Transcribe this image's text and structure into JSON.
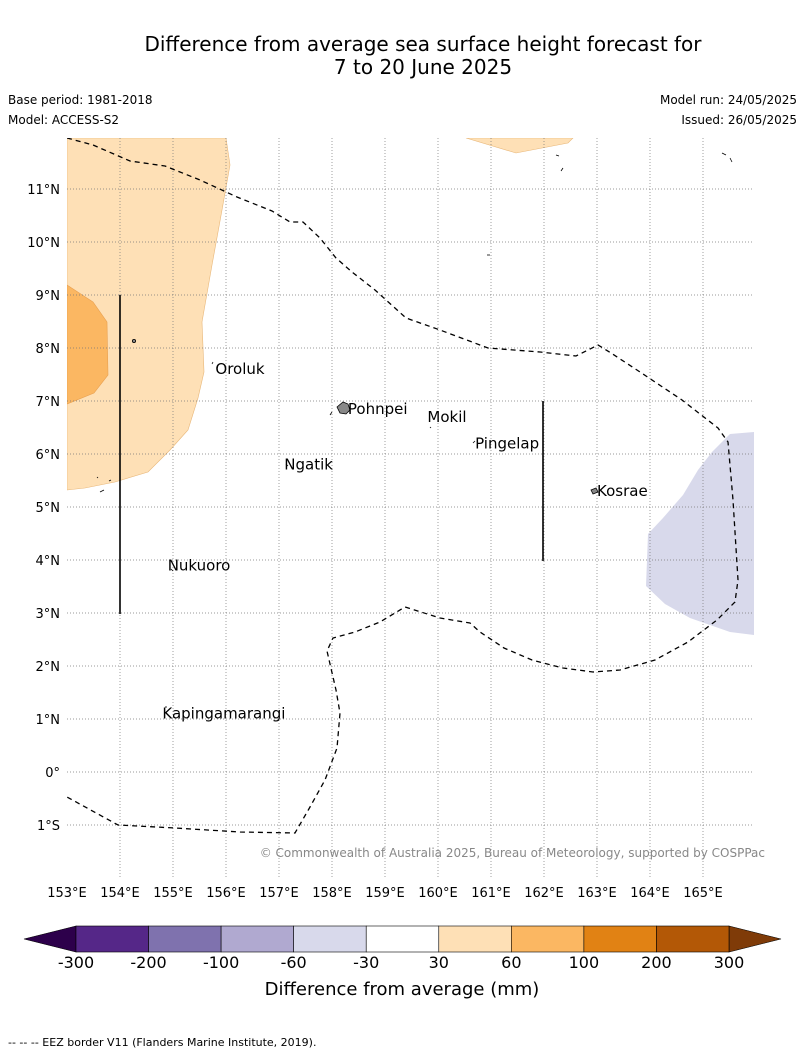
{
  "title": {
    "line1": "Difference from average sea surface height forecast for",
    "line2": "7 to 20 June 2025"
  },
  "meta": {
    "base_period": "Base period: 1981-2018",
    "model": "Model: ACCESS-S2",
    "model_run": "Model run: 24/05/2025",
    "issued": "Issued: 26/05/2025"
  },
  "map": {
    "lon_range": [
      153,
      166
    ],
    "lat_range": [
      -2,
      12
    ],
    "lon_ticks": [
      {
        "lon": 153,
        "label": "153°E"
      },
      {
        "lon": 154,
        "label": "154°E"
      },
      {
        "lon": 155,
        "label": "155°E"
      },
      {
        "lon": 156,
        "label": "156°E"
      },
      {
        "lon": 157,
        "label": "157°E"
      },
      {
        "lon": 158,
        "label": "158°E"
      },
      {
        "lon": 159,
        "label": "159°E"
      },
      {
        "lon": 160,
        "label": "160°E"
      },
      {
        "lon": 161,
        "label": "161°E"
      },
      {
        "lon": 162,
        "label": "162°E"
      },
      {
        "lon": 163,
        "label": "163°E"
      },
      {
        "lon": 164,
        "label": "164°E"
      },
      {
        "lon": 165,
        "label": "165°E"
      }
    ],
    "lat_ticks": [
      {
        "lat": 11,
        "label": "11°N"
      },
      {
        "lat": 10,
        "label": "10°N"
      },
      {
        "lat": 9,
        "label": "9°N"
      },
      {
        "lat": 8,
        "label": "8°N"
      },
      {
        "lat": 7,
        "label": "7°N"
      },
      {
        "lat": 6,
        "label": "6°N"
      },
      {
        "lat": 5,
        "label": "5°N"
      },
      {
        "lat": 4,
        "label": "4°N"
      },
      {
        "lat": 3,
        "label": "3°N"
      },
      {
        "lat": 2,
        "label": "2°N"
      },
      {
        "lat": 1,
        "label": "1°N"
      },
      {
        "lat": 0,
        "label": "0°"
      },
      {
        "lat": -1,
        "label": "1°S"
      }
    ],
    "places": [
      {
        "name": "Oroluk",
        "lon": 155.8,
        "lat": 7.6
      },
      {
        "name": "Pohnpei",
        "lon": 158.3,
        "lat": 6.85
      },
      {
        "name": "Mokil",
        "lon": 159.8,
        "lat": 6.7
      },
      {
        "name": "Pingelap",
        "lon": 160.7,
        "lat": 6.2
      },
      {
        "name": "Ngatik",
        "lon": 157.1,
        "lat": 5.8
      },
      {
        "name": "Kosrae",
        "lon": 163.0,
        "lat": 5.3
      },
      {
        "name": "Nukuoro",
        "lon": 154.9,
        "lat": 3.9
      },
      {
        "name": "Kapingamarangi",
        "lon": 154.8,
        "lat": 1.1
      }
    ],
    "credit": "© Commonwealth of Australia 2025, Bureau of Meteorology, supported by COSPPac"
  },
  "colorbar": {
    "label": "Difference from average (mm)",
    "ticks": [
      "-300",
      "-200",
      "-100",
      "-60",
      "-30",
      "30",
      "60",
      "100",
      "200",
      "300"
    ],
    "colors": [
      "#552788",
      "#7f72ae",
      "#b0a9d0",
      "#d8d9eb",
      "#ffffff",
      "#fee0b6",
      "#fbb762",
      "#e18214",
      "#b35806"
    ],
    "low_color": "#2d004b",
    "high_color": "#7f3b08"
  },
  "footer": "--  --  -- EEZ border V11 (Flanders Marine Institute, 2019)."
}
